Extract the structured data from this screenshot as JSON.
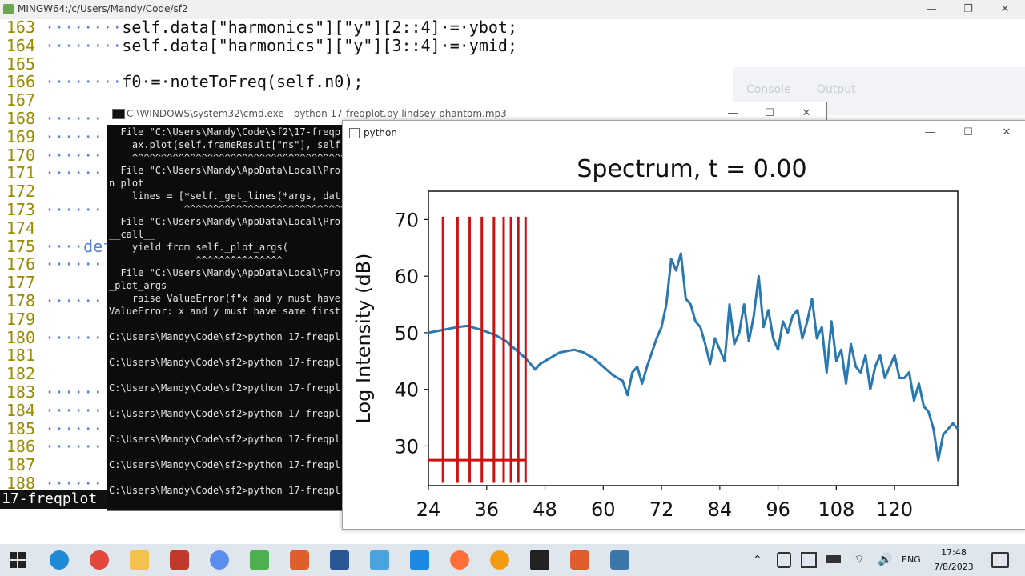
{
  "mingw": {
    "title": "MINGW64:/c/Users/Mandy/Code/sf2",
    "minimize": "—",
    "maximize": "❐",
    "close": "✕"
  },
  "editor": {
    "lines": [
      {
        "num": "163",
        "dots": "········",
        "code": "self.data[\"harmonics\"][\"y\"][2::4]·=·ybot;"
      },
      {
        "num": "164",
        "dots": "········",
        "code": "self.data[\"harmonics\"][\"y\"][3::4]·=·ymid;"
      },
      {
        "num": "165",
        "dots": "",
        "code": ""
      },
      {
        "num": "166",
        "dots": "········",
        "code": "f0·=·noteToFreq(self.n0);"
      },
      {
        "num": "167",
        "dots": "",
        "code": ""
      },
      {
        "num": "168",
        "dots": "·······",
        "code": ""
      },
      {
        "num": "169",
        "dots": "·······",
        "code": ""
      },
      {
        "num": "170",
        "dots": "·······",
        "code": ""
      },
      {
        "num": "171",
        "dots": "·······",
        "code": ""
      },
      {
        "num": "172",
        "dots": "",
        "code": ""
      },
      {
        "num": "173",
        "dots": "·······",
        "code": ""
      },
      {
        "num": "174",
        "dots": "",
        "code": ""
      },
      {
        "num": "175",
        "dots": "····def",
        "code": ""
      },
      {
        "num": "176",
        "dots": "·······",
        "code": ""
      },
      {
        "num": "177",
        "dots": "",
        "code": ""
      },
      {
        "num": "178",
        "dots": "·······",
        "code": ""
      },
      {
        "num": "179",
        "dots": "",
        "code": ""
      },
      {
        "num": "180",
        "dots": "·······",
        "code": ""
      },
      {
        "num": "181",
        "dots": "",
        "code": ""
      },
      {
        "num": "182",
        "dots": "",
        "code": ""
      },
      {
        "num": "183",
        "dots": "·······",
        "code": ""
      },
      {
        "num": "184",
        "dots": "·······",
        "code": ""
      },
      {
        "num": "185",
        "dots": "·······",
        "code": ""
      },
      {
        "num": "186",
        "dots": "·······",
        "code": ""
      },
      {
        "num": "187",
        "dots": "",
        "code": ""
      },
      {
        "num": "188",
        "dots": "·······",
        "code": ""
      }
    ],
    "faded_console": "Console",
    "faded_output": "Output",
    "bottom_prompt": "17-freqplot"
  },
  "cmd": {
    "title": "C:\\WINDOWS\\system32\\cmd.exe - python  17-freqplot.py lindsey-phantom.mp3",
    "lines": [
      "  File \"C:\\Users\\Mandy\\Code\\sf2\\17-freqp",
      "    ax.plot(self.frameResult[\"ns\"], self",
      "    ^^^^^^^^^^^^^^^^^^^^^^^^^^^^^^^^^^^^^",
      "  File \"C:\\Users\\Mandy\\AppData\\Local\\Pro",
      "n plot",
      "    lines = [*self._get_lines(*args, dat",
      "             ^^^^^^^^^^^^^^^^^^^^^^^^^^^^",
      "  File \"C:\\Users\\Mandy\\AppData\\Local\\Pro",
      "__call__",
      "    yield from self._plot_args(",
      "               ^^^^^^^^^^^^^^^",
      "  File \"C:\\Users\\Mandy\\AppData\\Local\\Pro",
      "_plot_args",
      "    raise ValueError(f\"x and y must have",
      "ValueError: x and y must have same first",
      "",
      "C:\\Users\\Mandy\\Code\\sf2>python 17-freqpl",
      "",
      "C:\\Users\\Mandy\\Code\\sf2>python 17-freqpl",
      "",
      "C:\\Users\\Mandy\\Code\\sf2>python 17-freqpl",
      "",
      "C:\\Users\\Mandy\\Code\\sf2>python 17-freqpl",
      "",
      "C:\\Users\\Mandy\\Code\\sf2>python 17-freqpl",
      "",
      "C:\\Users\\Mandy\\Code\\sf2>python 17-freqpl",
      "",
      "C:\\Users\\Mandy\\Code\\sf2>python 17-freqpl"
    ]
  },
  "py_window": {
    "title": "python",
    "minimize": "—",
    "maximize": "☐",
    "close": "✕"
  },
  "chart_data": {
    "type": "line",
    "title": "Spectrum, t = 0.00",
    "xlabel": "",
    "ylabel": "Log Intensity (dB)",
    "xlim": [
      24,
      133
    ],
    "ylim": [
      23,
      75
    ],
    "xticks": [
      24,
      36,
      48,
      60,
      72,
      84,
      96,
      108,
      120
    ],
    "yticks": [
      30,
      40,
      50,
      60,
      70
    ],
    "series": [
      {
        "color": "#2a78b0",
        "x": [
          24,
          27,
          30,
          32,
          35,
          38,
          40,
          42,
          44,
          46,
          47,
          49,
          51,
          54,
          56,
          58,
          60,
          62,
          64,
          65,
          66,
          67,
          68,
          69,
          70,
          71,
          72,
          73,
          74,
          75,
          76,
          77,
          78,
          79,
          80,
          81,
          82,
          83,
          84,
          85,
          86,
          87,
          88,
          89,
          90,
          91,
          92,
          93,
          94,
          95,
          96,
          97,
          98,
          99,
          100,
          101,
          102,
          103,
          104,
          105,
          106,
          107,
          108,
          109,
          110,
          111,
          112,
          113,
          114,
          115,
          116,
          117,
          118,
          119,
          120,
          121,
          122,
          123,
          124,
          125,
          126,
          127,
          128,
          129,
          130,
          131,
          132,
          133
        ],
        "y": [
          50,
          50.5,
          51,
          51.2,
          50.5,
          49.5,
          48.5,
          47,
          45.5,
          43.5,
          44.5,
          45.5,
          46.5,
          47,
          46.5,
          45.5,
          44,
          42.5,
          41.5,
          39,
          43,
          44,
          41,
          44,
          46.5,
          49,
          51,
          55,
          63,
          61,
          64,
          56,
          55,
          52,
          51,
          48,
          44.5,
          49,
          47,
          45,
          55,
          48,
          50,
          55,
          48.5,
          53,
          60,
          51,
          54,
          49,
          47,
          52,
          50,
          53,
          54,
          49,
          52,
          56,
          49,
          51,
          43,
          52,
          45,
          47,
          41,
          48,
          44,
          43,
          46,
          40,
          44,
          46,
          42,
          44,
          46,
          42,
          42,
          43,
          38,
          41,
          37,
          36,
          33,
          27.5,
          32,
          33,
          34,
          33
        ]
      }
    ],
    "overlay": {
      "color": "#cc1111",
      "vertical_x": [
        27,
        30,
        32.5,
        35,
        37.5,
        39.5,
        41,
        42.5,
        44
      ],
      "vertical_y": [
        23.5,
        70.5
      ],
      "horizontal_y": 27.5,
      "horizontal_x": [
        24,
        44
      ]
    }
  },
  "taskbar": {
    "time": "17:48",
    "date": "7/8/2023",
    "lang": "ENG",
    "colors": {
      "edge": "#1f8ad6",
      "chrome": "#e2483d",
      "explorer": "#f2c14e",
      "git": "#e05d2e",
      "python": "#3b77a8"
    }
  }
}
